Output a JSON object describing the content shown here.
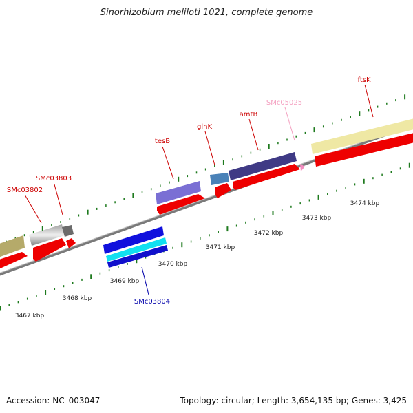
{
  "title": "Sinorhizobium meliloti 1021, complete genome",
  "footer": {
    "accession": "Accession: NC_003047",
    "summary": "Topology: circular; Length: 3,654,135 bp; Genes: 3,425"
  },
  "scale_labels": [
    "3467 kbp",
    "3468 kbp",
    "3469 kbp",
    "3470 kbp",
    "3471 kbp",
    "3472 kbp",
    "3473 kbp",
    "3474 kbp"
  ],
  "gene_labels": [
    {
      "id": "smc03802",
      "text": "SMc03802",
      "color": "#cc0000"
    },
    {
      "id": "smc03803",
      "text": "SMc03803",
      "color": "#cc0000"
    },
    {
      "id": "tesb",
      "text": "tesB",
      "color": "#cc0000"
    },
    {
      "id": "glnk",
      "text": "glnK",
      "color": "#cc0000"
    },
    {
      "id": "amtb",
      "text": "amtB",
      "color": "#cc0000"
    },
    {
      "id": "smc05025",
      "text": "SMc05025",
      "color": "#f4a0c0"
    },
    {
      "id": "ftsk",
      "text": "ftsK",
      "color": "#cc0000"
    },
    {
      "id": "smc03804",
      "text": "SMc03804",
      "color": "#0000aa"
    }
  ],
  "colors": {
    "backbone": "#808080",
    "tick": "#1e7a1e",
    "cds": "#ff0000"
  }
}
